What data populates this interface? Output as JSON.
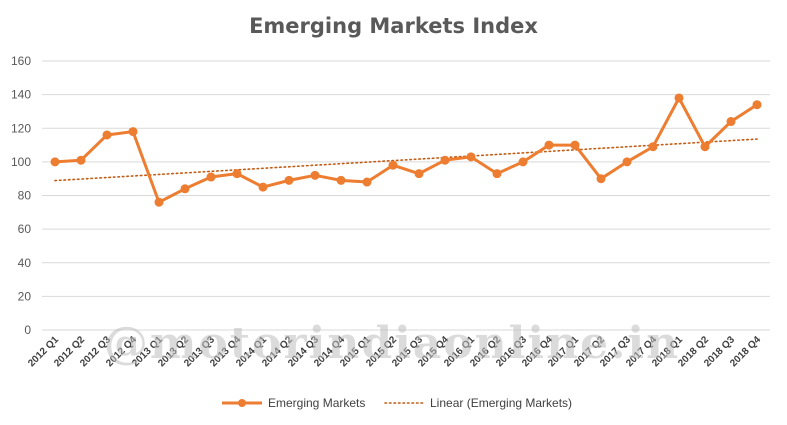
{
  "chart_data": {
    "type": "line",
    "title": "Emerging Markets Index",
    "xlabel": "",
    "ylabel": "",
    "ylim": [
      0,
      160
    ],
    "yticks": [
      0,
      20,
      40,
      60,
      80,
      100,
      120,
      140,
      160
    ],
    "grid": true,
    "legend_position": "bottom",
    "categories": [
      "2012 Q1",
      "2012 Q2",
      "2012 Q3",
      "2012 Q4",
      "2013 Q1",
      "2013 Q2",
      "2013 Q3",
      "2013 Q4",
      "2014 Q1",
      "2014 Q2",
      "2014 Q3",
      "2014 Q4",
      "2015 Q1",
      "2015 Q2",
      "2015 Q3",
      "2015 Q4",
      "2016 Q1",
      "2016 Q2",
      "2016 Q3",
      "2016 Q4",
      "2017 Q1",
      "2017 Q2",
      "2017 Q3",
      "2017 Q4",
      "2018 Q1",
      "2018 Q2",
      "2018 Q3",
      "2018 Q4"
    ],
    "series": [
      {
        "name": "Emerging Markets",
        "color": "#ED7D31",
        "values": [
          100,
          101,
          116,
          118,
          76,
          84,
          91,
          93,
          85,
          89,
          92,
          89,
          88,
          98,
          93,
          101,
          103,
          93,
          100,
          110,
          110,
          90,
          100,
          109,
          138,
          109,
          124,
          134
        ]
      },
      {
        "name": "Linear (Emerging Markets)",
        "color": "#C55A11",
        "style": "dotted",
        "trendline_of": "Emerging Markets"
      }
    ],
    "watermark": "@motorindiaonline.in"
  }
}
